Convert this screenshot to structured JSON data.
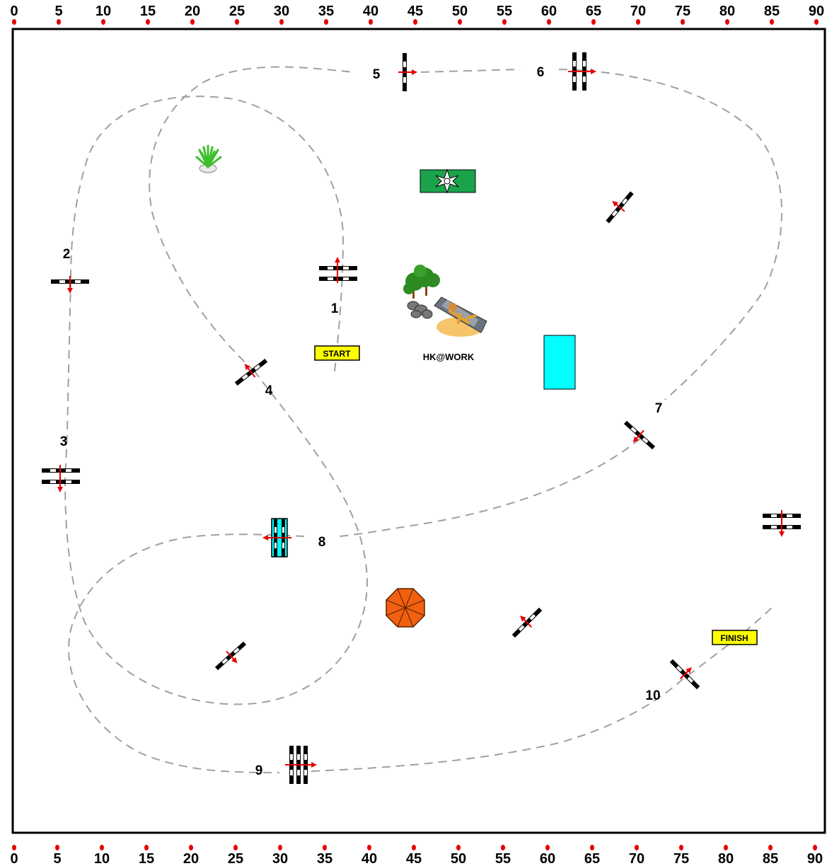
{
  "scale": {
    "ticks": [
      "0",
      "5",
      "10",
      "15",
      "20",
      "25",
      "30",
      "35",
      "40",
      "45",
      "50",
      "55",
      "60",
      "65",
      "70",
      "75",
      "80",
      "85",
      "90"
    ]
  },
  "labels": {
    "start": "START",
    "finish": "FINISH",
    "brand": "HK@WORK"
  },
  "obstacles": {
    "numbers": [
      "1",
      "2",
      "3",
      "4",
      "5",
      "6",
      "7",
      "8",
      "9",
      "10"
    ]
  },
  "colors": {
    "tick_marker": "#e60000",
    "path": "#a0a0a0",
    "sign_fill": "#ffff00",
    "water": "#00ffff",
    "green_box": "#1aa34a",
    "umbrella": "#f06010"
  },
  "icons": [
    "plant-icon",
    "flower-icon",
    "trees-icon",
    "sunbather-icon",
    "umbrella-icon"
  ]
}
